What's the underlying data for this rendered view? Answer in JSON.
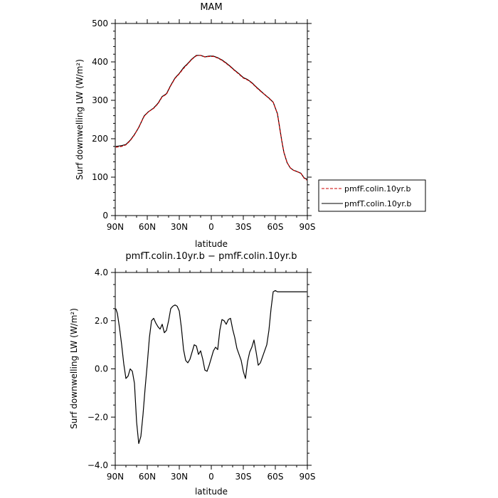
{
  "chart_data": [
    {
      "type": "line",
      "title": "MAM",
      "xlabel": "latitude",
      "ylabel": "Surf downwelling LW (W/m²)",
      "xlim": [
        90,
        -90
      ],
      "ylim": [
        0,
        500
      ],
      "x_ticks": [
        90,
        60,
        30,
        0,
        -30,
        -60,
        -90
      ],
      "x_tick_labels": [
        "90N",
        "60N",
        "30N",
        "0",
        "30S",
        "60S",
        "90S"
      ],
      "y_ticks": [
        0,
        100,
        200,
        300,
        400,
        500
      ],
      "y_tick_labels": [
        "0",
        "100",
        "200",
        "300",
        "400",
        "500"
      ],
      "legend_position": "right",
      "series": [
        {
          "name": "pmfF.colin.10yr.b",
          "color": "#cc0000",
          "style": "dashed",
          "x": [
            89.5,
            84,
            80,
            76,
            72,
            68,
            63,
            59,
            54,
            50,
            46,
            42,
            38,
            34,
            30,
            26,
            22,
            18,
            14,
            10,
            6,
            2,
            -2,
            -6,
            -10,
            -14,
            -18,
            -22,
            -26,
            -30,
            -34,
            -38,
            -42,
            -46,
            -50,
            -54,
            -58,
            -62,
            -64,
            -66,
            -68,
            -71,
            -74,
            -77,
            -80,
            -84,
            -87,
            -89.5
          ],
          "values": [
            178,
            180,
            184,
            195,
            210,
            230,
            258,
            270,
            279,
            291,
            309,
            316,
            338,
            357,
            369,
            383,
            395,
            407,
            416,
            417,
            413,
            414,
            414,
            410,
            404,
            396,
            387,
            377,
            368,
            358,
            353,
            345,
            334,
            324,
            315,
            305,
            295,
            265,
            230,
            195,
            165,
            138,
            124,
            118,
            115,
            110,
            97,
            92
          ]
        },
        {
          "name": "pmfT.colin.10yr.b",
          "color": "#000000",
          "style": "solid",
          "x": [
            89.5,
            84,
            80,
            76,
            72,
            68,
            63,
            59,
            54,
            50,
            46,
            42,
            38,
            34,
            30,
            26,
            22,
            18,
            14,
            10,
            6,
            2,
            -2,
            -6,
            -10,
            -14,
            -18,
            -22,
            -26,
            -30,
            -34,
            -38,
            -42,
            -46,
            -50,
            -54,
            -58,
            -62,
            -64,
            -66,
            -68,
            -71,
            -74,
            -77,
            -80,
            -84,
            -87,
            -89.5
          ],
          "values": [
            180,
            182,
            185,
            196,
            211,
            229,
            259,
            270,
            280,
            292,
            310,
            317,
            339,
            358,
            370,
            385,
            396,
            408,
            417,
            417,
            413,
            415,
            415,
            411,
            405,
            397,
            388,
            378,
            369,
            359,
            354,
            346,
            335,
            325,
            315,
            306,
            295,
            265,
            230,
            195,
            165,
            138,
            124,
            118,
            115,
            110,
            98,
            95
          ]
        }
      ]
    },
    {
      "type": "line",
      "title": "pmfT.colin.10yr.b − pmfF.colin.10yr.b",
      "xlabel": "latitude",
      "ylabel": "Surf downwelling LW (W/m²)",
      "xlim": [
        90,
        -90
      ],
      "ylim": [
        -4.0,
        4.0
      ],
      "x_ticks": [
        90,
        60,
        30,
        0,
        -30,
        -60,
        -90
      ],
      "x_tick_labels": [
        "90N",
        "60N",
        "30N",
        "0",
        "30S",
        "60S",
        "90S"
      ],
      "y_ticks": [
        -4,
        -2,
        0,
        2,
        4
      ],
      "y_tick_labels": [
        "−4.0",
        "−2.0",
        "0.0",
        "2.0",
        "4.0"
      ],
      "series": [
        {
          "color": "#000000",
          "style": "solid",
          "x": [
            89.5,
            88,
            86,
            84,
            82,
            80,
            78,
            76,
            74,
            72,
            70,
            68,
            66,
            64,
            62,
            60,
            58,
            56,
            54,
            52,
            50,
            48,
            46,
            44,
            42,
            40,
            38,
            36,
            34,
            32,
            30,
            28,
            26,
            24,
            22,
            20,
            18,
            16,
            14,
            12,
            10,
            8,
            6,
            4,
            2,
            0,
            -2,
            -4,
            -6,
            -8,
            -10,
            -12,
            -14,
            -16,
            -18,
            -20,
            -22,
            -24,
            -26,
            -28,
            -30,
            -32,
            -34,
            -36,
            -38,
            -40,
            -42,
            -44,
            -46,
            -48,
            -50,
            -52,
            -54,
            -56,
            -58,
            -60,
            -62,
            -64,
            -66,
            -68,
            -70,
            -72,
            -74,
            -76,
            -78,
            -80,
            -82,
            -84,
            -86,
            -88,
            -89.5
          ],
          "values": [
            2.5,
            2.3,
            1.7,
            1.0,
            0.2,
            -0.4,
            -0.3,
            0.0,
            -0.1,
            -0.6,
            -2.2,
            -3.1,
            -2.8,
            -1.9,
            -0.8,
            0.2,
            1.3,
            2.0,
            2.1,
            1.9,
            1.75,
            1.65,
            1.85,
            1.5,
            1.6,
            2.0,
            2.5,
            2.6,
            2.65,
            2.6,
            2.4,
            1.7,
            0.8,
            0.35,
            0.25,
            0.4,
            0.7,
            1.0,
            0.95,
            0.6,
            0.75,
            0.4,
            -0.05,
            -0.1,
            0.15,
            0.45,
            0.75,
            0.9,
            0.8,
            1.6,
            2.05,
            2.0,
            1.85,
            2.05,
            2.1,
            1.65,
            1.3,
            0.85,
            0.6,
            0.35,
            -0.1,
            -0.4,
            0.3,
            0.7,
            0.9,
            1.2,
            0.7,
            0.15,
            0.25,
            0.5,
            0.75,
            1.0,
            1.6,
            2.5,
            3.2,
            3.25,
            3.2,
            3.2,
            3.2,
            3.2,
            3.2,
            3.2,
            3.2,
            3.2,
            3.2,
            3.2,
            3.2,
            3.2,
            3.2,
            3.2,
            3.2
          ]
        }
      ]
    }
  ]
}
